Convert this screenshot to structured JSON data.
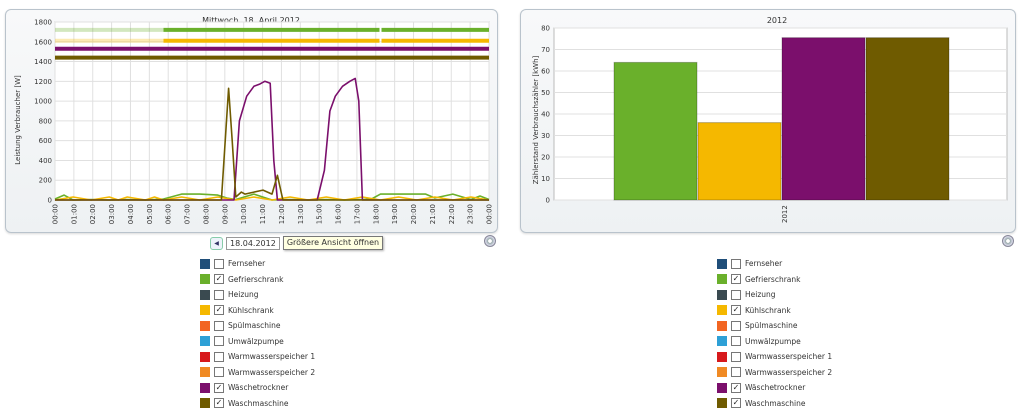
{
  "left_chart": {
    "title": "Mittwoch, 18. April 2012",
    "ylabel": "Leistung Verbraucher [W]",
    "y_ticks": [
      "0",
      "200",
      "400",
      "600",
      "800",
      "1000",
      "1200",
      "1400",
      "1600",
      "1800"
    ],
    "x_ticks": [
      "00:00",
      "01:00",
      "02:00",
      "03:00",
      "04:00",
      "05:00",
      "06:00",
      "07:00",
      "08:00",
      "09:00",
      "10:00",
      "11:00",
      "12:00",
      "13:00",
      "15:00",
      "16:00",
      "17:00",
      "18:00",
      "19:00",
      "20:00",
      "21:00",
      "22:00",
      "23:00",
      "00:00"
    ]
  },
  "right_chart": {
    "title": "2012",
    "ylabel": "Zählerstand Verbrauchszähler [kWh]",
    "y_ticks": [
      "0",
      "10",
      "20",
      "30",
      "40",
      "50",
      "60",
      "70",
      "80"
    ],
    "category_label": "2012"
  },
  "date_nav": {
    "date": "18.04.2012",
    "tooltip": "Größere Ansicht öffnen"
  },
  "legend_left": [
    {
      "label": "Fernseher",
      "color": "#1f4e79",
      "checked": ""
    },
    {
      "label": "Gefrierschrank",
      "color": "#6ab02b",
      "checked": "✓"
    },
    {
      "label": "Heizung",
      "color": "#3a4a50",
      "checked": ""
    },
    {
      "label": "Kühlschrank",
      "color": "#f5b800",
      "checked": "✓"
    },
    {
      "label": "Spülmaschine",
      "color": "#f26522",
      "checked": ""
    },
    {
      "label": "Umwälzpumpe",
      "color": "#2ea0d6",
      "checked": ""
    },
    {
      "label": "Warmwasserspeicher 1",
      "color": "#d7191c",
      "checked": ""
    },
    {
      "label": "Warmwasserspeicher 2",
      "color": "#f08a24",
      "checked": ""
    },
    {
      "label": "Wäschetrockner",
      "color": "#7b0f6c",
      "checked": "✓"
    },
    {
      "label": "Waschmaschine",
      "color": "#6f5b00",
      "checked": "✓"
    }
  ],
  "legend_right": [
    {
      "label": "Fernseher",
      "color": "#1f4e79",
      "checked": ""
    },
    {
      "label": "Gefrierschrank",
      "color": "#6ab02b",
      "checked": "✓"
    },
    {
      "label": "Heizung",
      "color": "#3a4a50",
      "checked": ""
    },
    {
      "label": "Kühlschrank",
      "color": "#f5b800",
      "checked": "✓"
    },
    {
      "label": "Spülmaschine",
      "color": "#f26522",
      "checked": ""
    },
    {
      "label": "Umwälzpumpe",
      "color": "#2ea0d6",
      "checked": ""
    },
    {
      "label": "Warmwasserspeicher 1",
      "color": "#d7191c",
      "checked": ""
    },
    {
      "label": "Warmwasserspeicher 2",
      "color": "#f08a24",
      "checked": ""
    },
    {
      "label": "Wäschetrockner",
      "color": "#7b0f6c",
      "checked": "✓"
    },
    {
      "label": "Waschmaschine",
      "color": "#6f5b00",
      "checked": "✓"
    }
  ],
  "chart_data": [
    {
      "type": "line",
      "title": "Mittwoch, 18. April 2012",
      "xlabel": "",
      "ylabel": "Leistung Verbraucher [W]",
      "ylim": [
        0,
        1800
      ],
      "xlim": [
        0,
        24
      ],
      "grid": true,
      "series": [
        {
          "name": "Gefrierschrank",
          "color": "#6ab02b",
          "x": [
            0,
            0.5,
            1,
            2,
            3,
            4,
            5,
            6,
            7,
            8,
            9,
            9.5,
            10,
            11,
            12,
            13,
            14,
            15,
            16,
            17,
            17.5,
            18,
            19,
            20,
            20.5,
            21,
            22,
            23,
            23.5,
            24
          ],
          "y": [
            10,
            50,
            0,
            5,
            0,
            5,
            0,
            10,
            60,
            60,
            50,
            20,
            5,
            60,
            0,
            5,
            0,
            5,
            0,
            5,
            10,
            60,
            60,
            60,
            60,
            20,
            60,
            5,
            40,
            5
          ]
        },
        {
          "name": "Kühlschrank",
          "color": "#f5b800",
          "x": [
            0,
            1,
            2,
            3,
            3.5,
            4,
            5,
            5.5,
            6,
            7,
            8,
            9,
            10,
            11,
            12,
            13,
            14,
            15,
            16,
            17,
            18,
            19,
            20,
            21,
            22,
            23,
            24
          ],
          "y": [
            0,
            30,
            0,
            30,
            0,
            30,
            0,
            30,
            0,
            30,
            0,
            30,
            0,
            30,
            0,
            30,
            0,
            30,
            0,
            30,
            0,
            30,
            0,
            30,
            0,
            30,
            0
          ]
        },
        {
          "name": "Wäschetrockner",
          "color": "#7b0f6c",
          "x": [
            0,
            9.9,
            10.2,
            10.6,
            11,
            11.3,
            11.6,
            11.9,
            12.1,
            12.3,
            13,
            14.5,
            14.9,
            15.2,
            15.5,
            15.9,
            16.3,
            16.6,
            16.8,
            17,
            24
          ],
          "y": [
            0,
            0,
            800,
            1050,
            1150,
            1170,
            1200,
            1180,
            400,
            0,
            0,
            0,
            300,
            900,
            1050,
            1150,
            1200,
            1230,
            1000,
            0,
            0
          ]
        },
        {
          "name": "Waschmaschine",
          "color": "#6f5b00",
          "x": [
            0,
            9.2,
            9.6,
            9.8,
            10,
            10.3,
            10.5,
            11,
            11.5,
            12,
            12.3,
            12.6,
            13,
            24
          ],
          "y": [
            0,
            0,
            1130,
            600,
            30,
            80,
            60,
            80,
            100,
            60,
            250,
            0,
            0,
            0
          ]
        }
      ],
      "status_bars": [
        {
          "name": "Gefrierschrank",
          "y": 1720,
          "dim_until": 6,
          "gap_at": 18
        },
        {
          "name": "Kühlschrank",
          "y": 1610,
          "dim_until": 6,
          "gap_at": 18
        },
        {
          "name": "Wäschetrockner",
          "y": 1530
        },
        {
          "name": "Waschmaschine",
          "y": 1440
        }
      ]
    },
    {
      "type": "bar",
      "title": "2012",
      "xlabel": "",
      "ylabel": "Zählerstand Verbrauchszähler [kWh]",
      "ylim": [
        0,
        80
      ],
      "grid": true,
      "categories": [
        "2012"
      ],
      "series": [
        {
          "name": "Gefrierschrank",
          "color": "#6ab02b",
          "values": [
            64
          ]
        },
        {
          "name": "Kühlschrank",
          "color": "#f5b800",
          "values": [
            36
          ]
        },
        {
          "name": "Wäschetrockner",
          "color": "#7b0f6c",
          "values": [
            75.5
          ]
        },
        {
          "name": "Waschmaschine",
          "color": "#6f5b00",
          "values": [
            75.5
          ]
        }
      ]
    }
  ]
}
